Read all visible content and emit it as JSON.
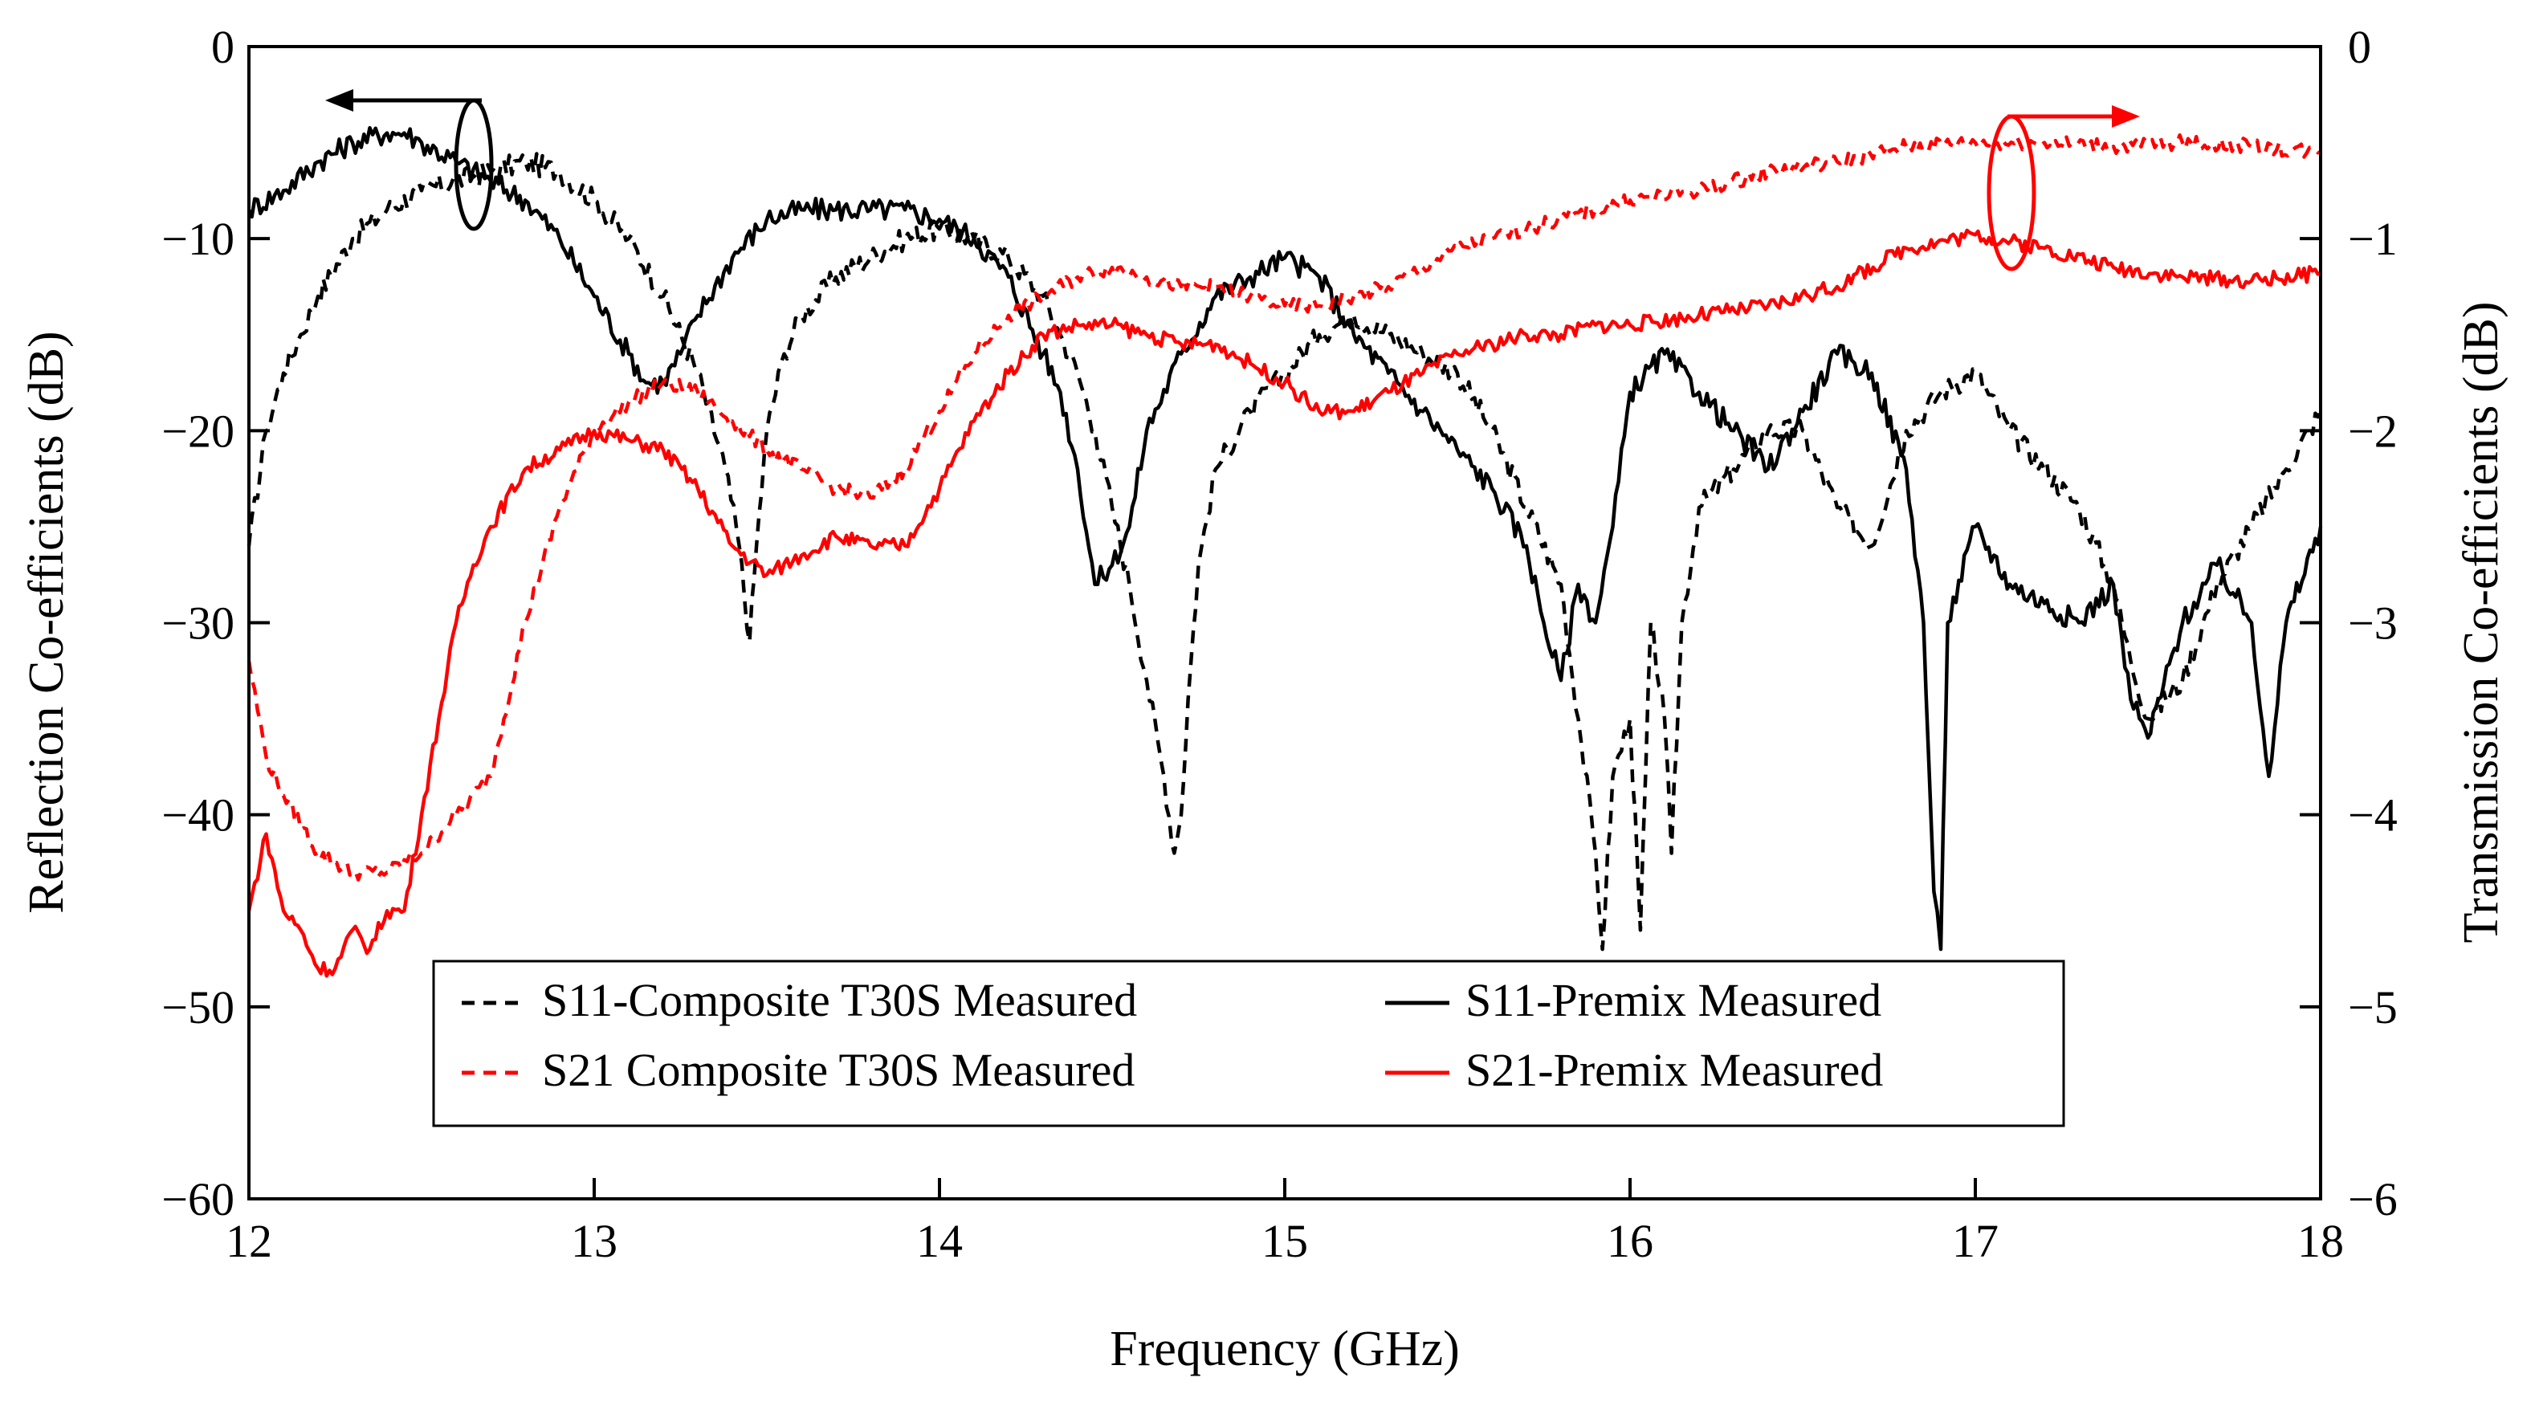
{
  "chart_data": {
    "type": "line",
    "xlabel": "Frequency (GHz)",
    "ylabel_left": "Reflection Co-efficients (dB)",
    "ylabel_right": "Transmission Co-efficients (dB)",
    "xlim": [
      12,
      18
    ],
    "ylim_left": [
      -60,
      0
    ],
    "ylim_right": [
      -6,
      0
    ],
    "x_ticks": [
      "12",
      "13",
      "14",
      "15",
      "16",
      "17",
      "18"
    ],
    "y_ticks_left": [
      "0",
      "−10",
      "−20",
      "−30",
      "−40",
      "−50",
      "−60"
    ],
    "y_ticks_right": [
      "0",
      "−1",
      "−2",
      "−3",
      "−4",
      "−5",
      "−6"
    ],
    "grid": false,
    "legend_position": "bottom-center",
    "annotations": [
      "ellipse with arrow pointing left marking S11 curves (left axis)",
      "ellipse with arrow pointing right marking S21 curves (right axis)"
    ],
    "series": [
      {
        "name": "S11-Composite T30S Measured",
        "axis": "left",
        "color": "#000000",
        "dash": "dashed",
        "x": [
          12.0,
          12.05,
          12.1,
          12.15,
          12.2,
          12.3,
          12.4,
          12.5,
          12.6,
          12.7,
          12.8,
          12.9,
          13.0,
          13.1,
          13.2,
          13.3,
          13.38,
          13.42,
          13.45,
          13.47,
          13.5,
          13.55,
          13.6,
          13.7,
          13.8,
          13.9,
          14.0,
          14.1,
          14.2,
          14.3,
          14.35,
          14.4,
          14.45,
          14.5,
          14.55,
          14.6,
          14.65,
          14.68,
          14.7,
          14.72,
          14.75,
          14.8,
          14.9,
          15.0,
          15.1,
          15.2,
          15.3,
          15.4,
          15.5,
          15.6,
          15.7,
          15.8,
          15.85,
          15.9,
          15.92,
          15.95,
          16.0,
          16.03,
          16.06,
          16.1,
          16.12,
          16.15,
          16.2,
          16.3,
          16.4,
          16.5,
          16.6,
          16.7,
          16.8,
          16.9,
          17.0,
          17.1,
          17.2,
          17.3,
          17.4,
          17.45,
          17.5,
          17.6,
          17.7,
          17.8,
          17.9,
          18.0
        ],
        "y": [
          -26,
          -20,
          -17,
          -15,
          -13,
          -10,
          -8.5,
          -7.5,
          -7,
          -6.5,
          -6,
          -6.5,
          -8,
          -10,
          -13,
          -17,
          -22,
          -26,
          -31,
          -26,
          -20,
          -16,
          -14,
          -12,
          -11,
          -10,
          -9.5,
          -10,
          -11,
          -13,
          -15,
          -17,
          -20,
          -24,
          -28,
          -33,
          -38,
          -42,
          -40,
          -34,
          -27,
          -22,
          -19,
          -17,
          -15,
          -14,
          -15,
          -16,
          -17,
          -20,
          -24,
          -28,
          -35,
          -42,
          -47,
          -38,
          -35,
          -46,
          -30,
          -35,
          -42,
          -30,
          -24,
          -22,
          -20,
          -20,
          -24,
          -26,
          -20,
          -18,
          -17,
          -20,
          -22,
          -24,
          -28,
          -32,
          -35,
          -33,
          -28,
          -25,
          -22,
          -19
        ]
      },
      {
        "name": "S11-Premix Measured",
        "axis": "left",
        "color": "#000000",
        "dash": "solid",
        "x": [
          12.0,
          12.1,
          12.2,
          12.3,
          12.4,
          12.45,
          12.5,
          12.6,
          12.7,
          12.8,
          12.9,
          13.0,
          13.1,
          13.15,
          13.2,
          13.25,
          13.3,
          13.4,
          13.5,
          13.6,
          13.7,
          13.8,
          13.9,
          14.0,
          14.1,
          14.2,
          14.3,
          14.35,
          14.4,
          14.45,
          14.5,
          14.55,
          14.6,
          14.7,
          14.8,
          14.9,
          15.0,
          15.1,
          15.2,
          15.3,
          15.4,
          15.5,
          15.6,
          15.7,
          15.75,
          15.8,
          15.85,
          15.9,
          15.95,
          16.0,
          16.1,
          16.2,
          16.3,
          16.4,
          16.5,
          16.6,
          16.7,
          16.8,
          16.85,
          16.88,
          16.9,
          16.92,
          17.0,
          17.1,
          17.2,
          17.3,
          17.4,
          17.45,
          17.5,
          17.6,
          17.7,
          17.8,
          17.85,
          17.9,
          18.0
        ],
        "y": [
          -8.5,
          -7.5,
          -6,
          -5,
          -4.5,
          -4.5,
          -5,
          -6,
          -7,
          -8,
          -10,
          -13,
          -16,
          -17.5,
          -17.5,
          -16,
          -14,
          -11,
          -9,
          -8.5,
          -8.5,
          -8.5,
          -8.5,
          -9,
          -10,
          -12,
          -16,
          -18,
          -22,
          -28,
          -27,
          -25,
          -20,
          -16,
          -13,
          -12,
          -11,
          -12,
          -15,
          -17,
          -19,
          -21,
          -23,
          -26,
          -30,
          -33,
          -28,
          -30,
          -25,
          -18,
          -16,
          -18,
          -20,
          -22,
          -19,
          -16,
          -17,
          -22,
          -30,
          -44,
          -47,
          -30,
          -25,
          -28,
          -29,
          -30,
          -28,
          -34,
          -36,
          -30,
          -27,
          -30,
          -38,
          -30,
          -25
        ]
      },
      {
        "name": "S21 Composite T30S Measured",
        "axis": "right",
        "color": "#ff0000",
        "dash": "dashed",
        "x": [
          12.0,
          12.05,
          12.1,
          12.2,
          12.3,
          12.4,
          12.5,
          12.6,
          12.7,
          12.8,
          12.9,
          13.0,
          13.1,
          13.2,
          13.3,
          13.4,
          13.5,
          13.6,
          13.7,
          13.8,
          13.9,
          14.0,
          14.1,
          14.2,
          14.3,
          14.4,
          14.5,
          14.6,
          14.7,
          14.8,
          14.9,
          15.0,
          15.1,
          15.2,
          15.3,
          15.4,
          15.5,
          15.6,
          15.7,
          15.8,
          15.9,
          16.0,
          16.2,
          16.4,
          16.6,
          16.8,
          17.0,
          17.2,
          17.4,
          17.6,
          17.8,
          18.0
        ],
        "y": [
          -3.2,
          -3.7,
          -3.9,
          -4.2,
          -4.3,
          -4.3,
          -4.2,
          -4.0,
          -3.8,
          -3.0,
          -2.4,
          -2.0,
          -1.85,
          -1.75,
          -1.8,
          -1.95,
          -2.1,
          -2.2,
          -2.3,
          -2.35,
          -2.2,
          -1.9,
          -1.6,
          -1.4,
          -1.3,
          -1.2,
          -1.15,
          -1.2,
          -1.25,
          -1.25,
          -1.3,
          -1.35,
          -1.35,
          -1.3,
          -1.25,
          -1.15,
          -1.05,
          -1.0,
          -0.95,
          -0.9,
          -0.85,
          -0.8,
          -0.75,
          -0.65,
          -0.6,
          -0.52,
          -0.5,
          -0.5,
          -0.52,
          -0.5,
          -0.52,
          -0.55
        ]
      },
      {
        "name": "S21-Premix Measured",
        "axis": "right",
        "color": "#ff0000",
        "dash": "solid",
        "x": [
          12.0,
          12.05,
          12.1,
          12.15,
          12.2,
          12.25,
          12.3,
          12.35,
          12.4,
          12.45,
          12.5,
          12.55,
          12.6,
          12.65,
          12.7,
          12.8,
          12.9,
          13.0,
          13.1,
          13.2,
          13.3,
          13.4,
          13.5,
          13.6,
          13.7,
          13.8,
          13.9,
          14.0,
          14.1,
          14.2,
          14.3,
          14.4,
          14.5,
          14.6,
          14.7,
          14.8,
          14.9,
          15.0,
          15.1,
          15.2,
          15.3,
          15.4,
          15.5,
          15.6,
          15.7,
          15.8,
          15.9,
          16.0,
          16.2,
          16.4,
          16.6,
          16.8,
          17.0,
          17.2,
          17.4,
          17.6,
          17.8,
          18.0
        ],
        "y": [
          -4.5,
          -4.1,
          -4.5,
          -4.6,
          -4.8,
          -4.8,
          -4.6,
          -4.7,
          -4.5,
          -4.5,
          -4.0,
          -3.5,
          -3.0,
          -2.7,
          -2.5,
          -2.2,
          -2.1,
          -2.0,
          -2.05,
          -2.1,
          -2.3,
          -2.6,
          -2.75,
          -2.65,
          -2.55,
          -2.6,
          -2.6,
          -2.3,
          -1.95,
          -1.7,
          -1.5,
          -1.45,
          -1.45,
          -1.5,
          -1.55,
          -1.55,
          -1.65,
          -1.75,
          -1.9,
          -1.9,
          -1.8,
          -1.7,
          -1.6,
          -1.55,
          -1.5,
          -1.5,
          -1.45,
          -1.45,
          -1.4,
          -1.35,
          -1.25,
          -1.05,
          -0.98,
          -1.05,
          -1.15,
          -1.2,
          -1.22,
          -1.18
        ]
      }
    ]
  }
}
